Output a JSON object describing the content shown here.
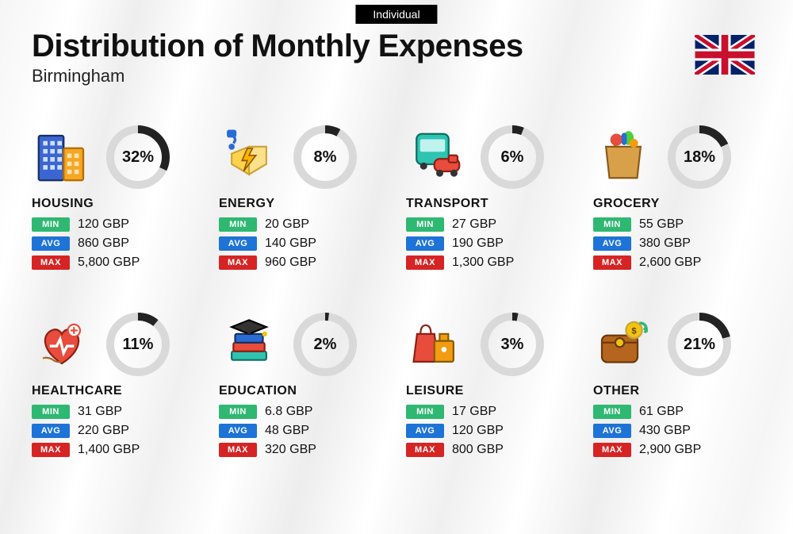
{
  "badge": "Individual",
  "title": "Distribution of Monthly Expenses",
  "subtitle": "Birmingham",
  "currency": "GBP",
  "labels": {
    "min": "MIN",
    "avg": "AVG",
    "max": "MAX"
  },
  "colors": {
    "min_pill": "#2eb872",
    "avg_pill": "#1e73d6",
    "max_pill": "#d62424",
    "donut_fg": "#222222",
    "donut_bg": "#d9d9d9",
    "text": "#111111"
  },
  "donut": {
    "size": 80,
    "stroke": 10
  },
  "flag": {
    "bg": "#012169",
    "white": "#ffffff",
    "red": "#C8102E"
  },
  "categories": [
    {
      "key": "housing",
      "name": "HOUSING",
      "pct": 32,
      "min": "120 GBP",
      "avg": "860 GBP",
      "max": "5,800 GBP",
      "icon": "buildings"
    },
    {
      "key": "energy",
      "name": "ENERGY",
      "pct": 8,
      "min": "20 GBP",
      "avg": "140 GBP",
      "max": "960 GBP",
      "icon": "energy"
    },
    {
      "key": "transport",
      "name": "TRANSPORT",
      "pct": 6,
      "min": "27 GBP",
      "avg": "190 GBP",
      "max": "1,300 GBP",
      "icon": "transport"
    },
    {
      "key": "grocery",
      "name": "GROCERY",
      "pct": 18,
      "min": "55 GBP",
      "avg": "380 GBP",
      "max": "2,600 GBP",
      "icon": "grocery"
    },
    {
      "key": "healthcare",
      "name": "HEALTHCARE",
      "pct": 11,
      "min": "31 GBP",
      "avg": "220 GBP",
      "max": "1,400 GBP",
      "icon": "healthcare"
    },
    {
      "key": "education",
      "name": "EDUCATION",
      "pct": 2,
      "min": "6.8 GBP",
      "avg": "48 GBP",
      "max": "320 GBP",
      "icon": "education"
    },
    {
      "key": "leisure",
      "name": "LEISURE",
      "pct": 3,
      "min": "17 GBP",
      "avg": "120 GBP",
      "max": "800 GBP",
      "icon": "leisure"
    },
    {
      "key": "other",
      "name": "OTHER",
      "pct": 21,
      "min": "61 GBP",
      "avg": "430 GBP",
      "max": "2,900 GBP",
      "icon": "other"
    }
  ]
}
